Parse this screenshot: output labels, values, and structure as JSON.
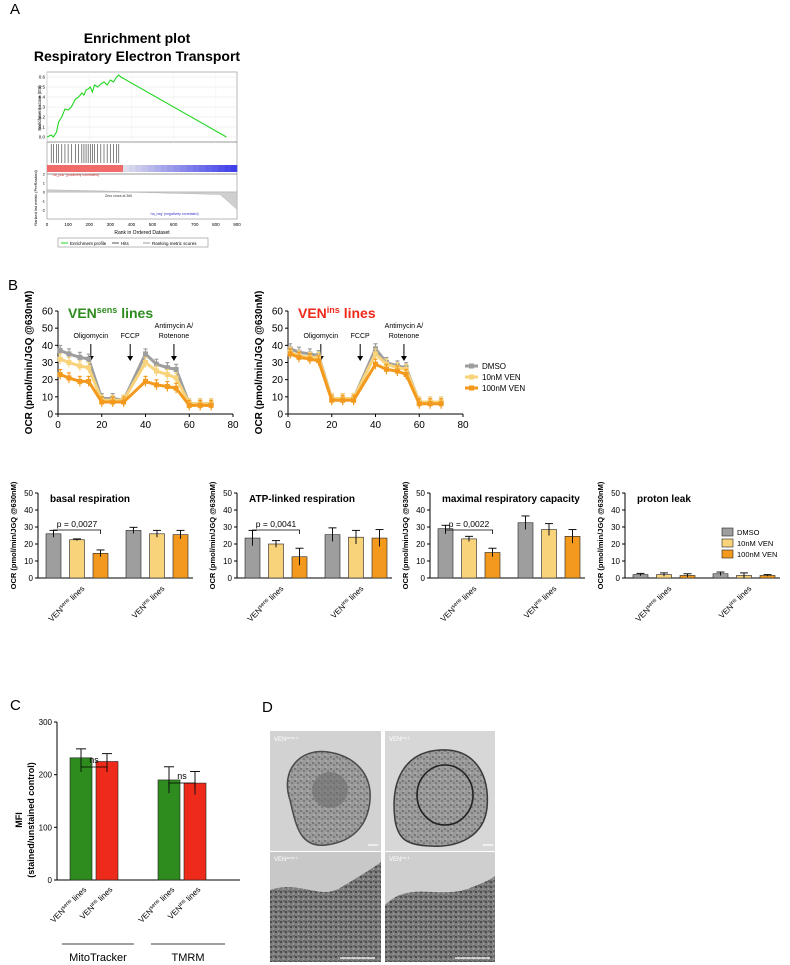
{
  "panel_letters": {
    "a": "A",
    "b": "B",
    "c": "C",
    "d": "D"
  },
  "colors": {
    "dmso": "#9e9e9e",
    "ven10": "#f8d37a",
    "ven100": "#f39a1e",
    "green": "#2e8b1e",
    "red": "#ee2a1b",
    "gsea_line": "#22d622",
    "pos_bar": "#f26b6b",
    "neg_bar": "#4040d0"
  },
  "chart_data": [
    {
      "id": "gsea",
      "type": "line",
      "title": "Enrichment plot",
      "subtitle": "Respiratory Electron Transport",
      "ylabel": "Enrichment score (ES)",
      "ylabel2": "Ranked list metric (PreRanked)",
      "xlabel": "Rank in Ordered Dataset",
      "ylim": [
        -0.05,
        0.65
      ],
      "yticks": [
        "0.6",
        "0.5",
        "0.4",
        "0.3",
        "0.2",
        "0.1",
        "0.0"
      ],
      "ylim2": [
        -2,
        2
      ],
      "yticks2": [
        "2",
        "1",
        "0",
        "-1",
        "-2"
      ],
      "xlim": [
        0,
        900
      ],
      "xticks": [
        "0",
        "100",
        "200",
        "300",
        "400",
        "500",
        "600",
        "700",
        "800",
        "900"
      ],
      "x": [
        0,
        20,
        30,
        45,
        55,
        70,
        85,
        100,
        115,
        135,
        150,
        165,
        175,
        185,
        195,
        205,
        215,
        225,
        240,
        255,
        270,
        285,
        300,
        315,
        330,
        340,
        350,
        850
      ],
      "es": [
        0.0,
        0.02,
        0.0,
        0.05,
        0.15,
        0.2,
        0.28,
        0.27,
        0.3,
        0.38,
        0.4,
        0.44,
        0.42,
        0.47,
        0.48,
        0.5,
        0.45,
        0.52,
        0.5,
        0.53,
        0.55,
        0.52,
        0.57,
        0.55,
        0.6,
        0.62,
        0.6,
        0.0
      ],
      "hits": [
        20,
        30,
        45,
        55,
        70,
        85,
        100,
        115,
        135,
        150,
        165,
        175,
        185,
        195,
        205,
        215,
        225,
        240,
        255,
        270,
        285,
        300,
        315,
        330,
        340
      ],
      "annotations": {
        "pos": "'na_pos' (positively correlated)",
        "neg": "'na_neg' (negatively correlated)",
        "zero": "Zero cross at 360"
      },
      "legend": [
        "Enrichment profile",
        "Hits",
        "Ranking metric scores"
      ]
    },
    {
      "id": "ocr_sens",
      "type": "line",
      "title_main": "VEN",
      "title_sup": "sens",
      "title_rest": " lines",
      "ylabel": "OCR (pmol/min/JGQ @630nM)",
      "xlim": [
        0,
        80
      ],
      "ylim": [
        0,
        60
      ],
      "xticks": [
        "0",
        "20",
        "40",
        "60",
        "80"
      ],
      "yticks": [
        "0",
        "10",
        "20",
        "30",
        "40",
        "50",
        "60"
      ],
      "injections": [
        {
          "label": "Oligomycin",
          "x": 15
        },
        {
          "label": "FCCP",
          "x": 33
        },
        {
          "label": "Antimycin A/\nRotenone",
          "x": 53
        }
      ],
      "x": [
        1,
        5,
        10,
        14,
        20,
        25,
        30,
        40,
        45,
        50,
        54,
        60,
        65,
        70
      ],
      "series": [
        {
          "name": "DMSO",
          "values": [
            37,
            35,
            33,
            32,
            9,
            9,
            8,
            35,
            29,
            27,
            26,
            6,
            6,
            6
          ]
        },
        {
          "name": "10nM VEN",
          "values": [
            32,
            30,
            28,
            27,
            8,
            8,
            8,
            30,
            25,
            23,
            21,
            6,
            6,
            6
          ]
        },
        {
          "name": "100nM VEN",
          "values": [
            23,
            21,
            19,
            19,
            7,
            7,
            7,
            19,
            17,
            16,
            15,
            5,
            5,
            5
          ]
        }
      ]
    },
    {
      "id": "ocr_ins",
      "type": "line",
      "title_main": "VEN",
      "title_sup": "ins",
      "title_rest": " lines",
      "ylabel": "OCR (pmol/min/JGQ @630nM)",
      "xlim": [
        0,
        80
      ],
      "ylim": [
        0,
        60
      ],
      "xticks": [
        "0",
        "20",
        "40",
        "60",
        "80"
      ],
      "yticks": [
        "0",
        "10",
        "20",
        "30",
        "40",
        "50",
        "60"
      ],
      "injections": [
        {
          "label": "Oligomycin",
          "x": 15
        },
        {
          "label": "FCCP",
          "x": 33
        },
        {
          "label": "Antimycin A/\nRotenone",
          "x": 53
        }
      ],
      "legend": [
        "DMSO",
        "10nM VEN",
        "100nM VEN"
      ],
      "x": [
        1,
        5,
        10,
        14,
        20,
        25,
        30,
        40,
        45,
        50,
        54,
        60,
        65,
        70
      ],
      "series": [
        {
          "name": "DMSO",
          "values": [
            38,
            36,
            35,
            34,
            9,
            9,
            9,
            38,
            30,
            28,
            27,
            7,
            7,
            7
          ]
        },
        {
          "name": "10nM VEN",
          "values": [
            36,
            34,
            33,
            33,
            9,
            9,
            9,
            35,
            29,
            27,
            26,
            7,
            7,
            7
          ]
        },
        {
          "name": "100nM VEN",
          "values": [
            35,
            33,
            32,
            31,
            8,
            8,
            8,
            29,
            26,
            25,
            23,
            6,
            6,
            6
          ]
        }
      ]
    },
    {
      "id": "bar_basal",
      "type": "bar",
      "title": "basal respiration",
      "ylabel": "OCR (pmol/min/JGQ @630nM)",
      "ylim": [
        0,
        50
      ],
      "yticks": [
        "0",
        "10",
        "20",
        "30",
        "40",
        "50"
      ],
      "groups": [
        {
          "main": "VEN",
          "sup": "sens",
          "rest": " lines"
        },
        {
          "main": "VEN",
          "sup": "ins",
          "rest": " lines"
        }
      ],
      "series": [
        {
          "name": "DMSO",
          "values": [
            26,
            28
          ],
          "errors": [
            2.0,
            1.8
          ]
        },
        {
          "name": "10nM VEN",
          "values": [
            22.5,
            26
          ],
          "errors": [
            0.5,
            2.0
          ]
        },
        {
          "name": "100nM VEN",
          "values": [
            14.5,
            25.5
          ],
          "errors": [
            2.0,
            2.5
          ]
        }
      ],
      "pvalue": "p = 0,0027"
    },
    {
      "id": "bar_atp",
      "type": "bar",
      "title": "ATP-linked respiration",
      "ylabel": "OCR (pmol/min/JGQ @630nM)",
      "ylim": [
        0,
        50
      ],
      "yticks": [
        "0",
        "10",
        "20",
        "30",
        "40",
        "50"
      ],
      "groups": [
        {
          "main": "VEN",
          "sup": "sens",
          "rest": " lines"
        },
        {
          "main": "VEN",
          "sup": "ins",
          "rest": " lines"
        }
      ],
      "series": [
        {
          "name": "DMSO",
          "values": [
            23.5,
            25.5
          ],
          "errors": [
            4.5,
            4.0
          ]
        },
        {
          "name": "10nM VEN",
          "values": [
            20,
            24
          ],
          "errors": [
            2.0,
            4.0
          ]
        },
        {
          "name": "100nM VEN",
          "values": [
            12.5,
            23.5
          ],
          "errors": [
            5.0,
            5.0
          ]
        }
      ],
      "pvalue": "p = 0,0041"
    },
    {
      "id": "bar_max",
      "type": "bar",
      "title": "maximal respiratory capacity",
      "ylabel": "OCR (pmol/min/JGQ @630nM)",
      "ylim": [
        0,
        50
      ],
      "yticks": [
        "0",
        "10",
        "20",
        "30",
        "40",
        "50"
      ],
      "groups": [
        {
          "main": "VEN",
          "sup": "sens",
          "rest": " lines"
        },
        {
          "main": "VEN",
          "sup": "ins",
          "rest": " lines"
        }
      ],
      "series": [
        {
          "name": "DMSO",
          "values": [
            29,
            32.5
          ],
          "errors": [
            2.0,
            4.0
          ]
        },
        {
          "name": "10nM VEN",
          "values": [
            23,
            28.5
          ],
          "errors": [
            1.5,
            3.5
          ]
        },
        {
          "name": "100nM VEN",
          "values": [
            15,
            24.5
          ],
          "errors": [
            2.5,
            4.0
          ]
        }
      ],
      "pvalue": "p = 0,0022"
    },
    {
      "id": "bar_leak",
      "type": "bar",
      "title": "proton leak",
      "ylabel": "OCR (pmol/min/JGQ @630nM)",
      "ylim": [
        0,
        50
      ],
      "yticks": [
        "0",
        "10",
        "20",
        "30",
        "40",
        "50"
      ],
      "groups": [
        {
          "main": "VEN",
          "sup": "sens",
          "rest": " lines"
        },
        {
          "main": "VEN",
          "sup": "ins",
          "rest": " lines"
        }
      ],
      "series": [
        {
          "name": "DMSO",
          "values": [
            2,
            2.5
          ],
          "errors": [
            0.7,
            1.0
          ]
        },
        {
          "name": "10nM VEN",
          "values": [
            2,
            1.5
          ],
          "errors": [
            1.0,
            1.5
          ]
        },
        {
          "name": "100nM VEN",
          "values": [
            1.5,
            1.5
          ],
          "errors": [
            1.0,
            0.5
          ]
        }
      ],
      "legend": [
        "DMSO",
        "10nM VEN",
        "100nM VEN"
      ]
    },
    {
      "id": "mfi",
      "type": "bar",
      "ylabel": "MFI",
      "ylabel2": "(stained/unstained control)",
      "ylim": [
        0,
        300
      ],
      "yticks": [
        "0",
        "100",
        "200",
        "300"
      ],
      "bars": [
        {
          "main": "VEN",
          "sup": "sens",
          "rest": " lines",
          "value": 232,
          "error": 17,
          "color": "green"
        },
        {
          "main": "VEN",
          "sup": "ins",
          "rest": " lines",
          "value": 225,
          "error": 15,
          "color": "red"
        },
        {
          "main": "VEN",
          "sup": "sens",
          "rest": " lines",
          "value": 190,
          "error": 25,
          "color": "green"
        },
        {
          "main": "VEN",
          "sup": "ins",
          "rest": " lines",
          "value": 184,
          "error": 22,
          "color": "red"
        }
      ],
      "groups": [
        "MitoTracker",
        "TMRM"
      ],
      "significance": [
        "ns",
        "ns"
      ]
    }
  ],
  "em_panel": {
    "labels": [
      {
        "main": "VEN",
        "sup": "sens 1"
      },
      {
        "main": "VEN",
        "sup": "ins 1"
      },
      {
        "main": "VEN",
        "sup": "sens 1"
      },
      {
        "main": "VEN",
        "sup": "ins 1"
      }
    ]
  }
}
